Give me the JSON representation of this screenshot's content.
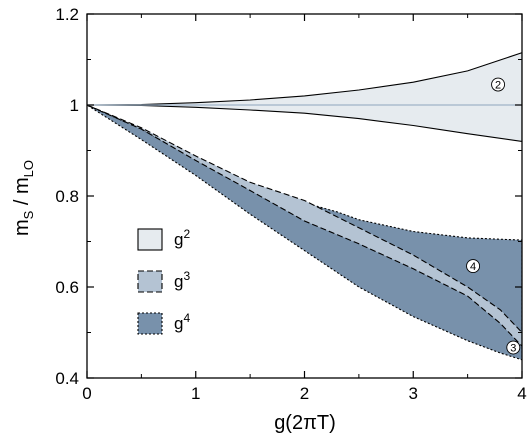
{
  "chart_data": {
    "type": "area",
    "xlabel_main": "g(2",
    "xlabel_pi": "π",
    "xlabel_end": "T)",
    "ylabel_main": "m",
    "ylabel_sub1": "S",
    "ylabel_sep": " / m",
    "ylabel_sub2": "LO",
    "xlim": [
      0,
      4
    ],
    "ylim": [
      0.4,
      1.2
    ],
    "x_ticks": [
      {
        "value": 0,
        "label": "0"
      },
      {
        "value": 1,
        "label": "1"
      },
      {
        "value": 2,
        "label": "2"
      },
      {
        "value": 3,
        "label": "3"
      },
      {
        "value": 4,
        "label": "4"
      }
    ],
    "y_ticks": [
      {
        "value": 0.4,
        "label": "0.4"
      },
      {
        "value": 0.6,
        "label": "0.6"
      },
      {
        "value": 0.8,
        "label": "0.8"
      },
      {
        "value": 1.0,
        "label": "1"
      },
      {
        "value": 1.2,
        "label": "1.2"
      }
    ],
    "colors": {
      "g2_fill": "#e6ebef",
      "g3_fill": "#b4c3d3",
      "g4_fill": "#7891ab",
      "reference_line": "#9fb4c8",
      "outline": "#000000"
    },
    "reference_line_y": 1.0,
    "bands": [
      {
        "key": "g4",
        "upper": [
          [
            0,
            1
          ],
          [
            0.5,
            0.947
          ],
          [
            1,
            0.88
          ],
          [
            1.5,
            0.82
          ],
          [
            2,
            0.785
          ],
          [
            2.3,
            0.765
          ],
          [
            2.5,
            0.748
          ],
          [
            3,
            0.722
          ],
          [
            3.5,
            0.708
          ],
          [
            4,
            0.703
          ]
        ],
        "lower": [
          [
            0,
            1
          ],
          [
            0.5,
            0.924
          ],
          [
            1,
            0.845
          ],
          [
            1.5,
            0.76
          ],
          [
            2,
            0.68
          ],
          [
            2.5,
            0.6
          ],
          [
            3,
            0.535
          ],
          [
            3.5,
            0.482
          ],
          [
            3.8,
            0.455
          ],
          [
            4,
            0.44
          ]
        ]
      },
      {
        "key": "g3",
        "upper": [
          [
            0,
            1
          ],
          [
            0.5,
            0.95
          ],
          [
            1,
            0.888
          ],
          [
            1.5,
            0.83
          ],
          [
            2,
            0.79
          ],
          [
            2.5,
            0.73
          ],
          [
            3,
            0.67
          ],
          [
            3.5,
            0.6
          ],
          [
            3.8,
            0.55
          ],
          [
            4,
            0.5
          ]
        ],
        "lower": [
          [
            0,
            1
          ],
          [
            0.5,
            0.947
          ],
          [
            1,
            0.878
          ],
          [
            1.5,
            0.812
          ],
          [
            2,
            0.745
          ],
          [
            2.5,
            0.695
          ],
          [
            3,
            0.64
          ],
          [
            3.5,
            0.58
          ],
          [
            3.8,
            0.52
          ],
          [
            4,
            0.47
          ]
        ]
      },
      {
        "key": "g2",
        "upper": [
          [
            0,
            1
          ],
          [
            0.5,
            1.001
          ],
          [
            1,
            1.005
          ],
          [
            1.5,
            1.011
          ],
          [
            2,
            1.02
          ],
          [
            2.5,
            1.033
          ],
          [
            3,
            1.05
          ],
          [
            3.5,
            1.075
          ],
          [
            4,
            1.115
          ]
        ],
        "lower": [
          [
            0,
            1
          ],
          [
            0.5,
            0.999
          ],
          [
            1,
            0.995
          ],
          [
            1.5,
            0.989
          ],
          [
            2,
            0.982
          ],
          [
            2.5,
            0.97
          ],
          [
            3,
            0.955
          ],
          [
            3.5,
            0.937
          ],
          [
            4,
            0.92
          ]
        ]
      }
    ],
    "legend": [
      {
        "key": "g2",
        "base": "g",
        "exp": "2",
        "style": "solid"
      },
      {
        "key": "g3",
        "base": "g",
        "exp": "3",
        "style": "dashed"
      },
      {
        "key": "g4",
        "base": "g",
        "exp": "4",
        "style": "dotted"
      }
    ],
    "legend_position": "middle-left",
    "markers": [
      {
        "text": "2",
        "x": 3.78,
        "y": 1.045
      },
      {
        "text": "4",
        "x": 3.55,
        "y": 0.646
      },
      {
        "text": "3",
        "x": 3.92,
        "y": 0.467
      }
    ]
  }
}
